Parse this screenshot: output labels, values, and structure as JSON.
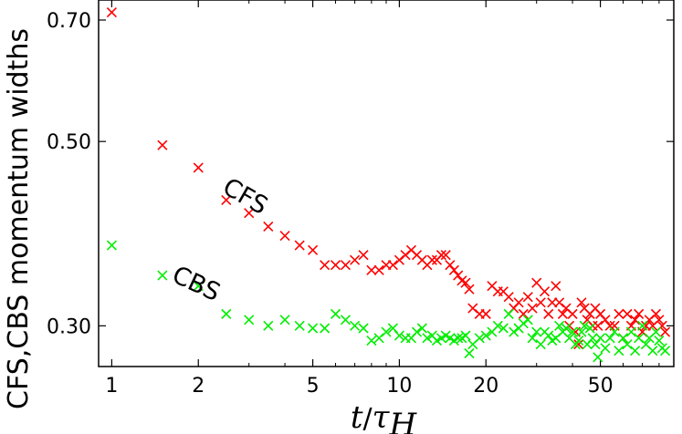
{
  "chart_data": {
    "type": "scatter",
    "title": "",
    "xlabel": "t/τ_H",
    "xlabel_main": "t",
    "xlabel_sep": "/",
    "xlabel_tau": "τ",
    "xlabel_sub": "H",
    "ylabel": "CFS,CBS momentum widths",
    "xscale": "log",
    "yscale": "log",
    "xlim": [
      0.9,
      90
    ],
    "ylim": [
      0.268,
      0.74
    ],
    "xticks": [
      1,
      2,
      5,
      10,
      20,
      50
    ],
    "xtick_labels": [
      "1",
      "2",
      "5",
      "10",
      "20",
      "50"
    ],
    "yticks": [
      0.3,
      0.5,
      0.7
    ],
    "ytick_labels": [
      "0.30",
      "0.50",
      "0.70"
    ],
    "annotations": [
      {
        "text": "CFS",
        "x": 2.4,
        "y": 0.435,
        "rotation": 30
      },
      {
        "text": "CBS",
        "x": 1.6,
        "y": 0.34,
        "rotation": 25
      }
    ],
    "series": [
      {
        "name": "CFS",
        "color": "#ff0000",
        "marker": "x",
        "x": [
          1.0,
          1.5,
          2.0,
          2.5,
          3.0,
          3.5,
          4.0,
          4.5,
          5.0,
          5.5,
          6.0,
          6.5,
          7.0,
          7.5,
          8.0,
          8.5,
          9.0,
          9.5,
          10.0,
          10.5,
          11.0,
          11.5,
          12.0,
          12.5,
          13.0,
          13.5,
          14.0,
          14.5,
          15.0,
          15.5,
          16.0,
          16.5,
          17.0,
          17.5,
          18.0,
          19.0,
          20.0,
          21.0,
          22.0,
          23.0,
          24.0,
          25.0,
          26.0,
          27.0,
          28.0,
          29.0,
          30.0,
          31.0,
          32.0,
          33.0,
          34.0,
          35.0,
          36.0,
          37.0,
          38.0,
          39.0,
          40.0,
          41.0,
          42.0,
          43.0,
          44.0,
          45.0,
          46.0,
          47.0,
          48.0,
          49.0,
          50.0,
          52.0,
          54.0,
          56.0,
          58.0,
          60.0,
          62.0,
          64.0,
          66.0,
          68.0,
          70.0,
          72.0,
          74.0,
          76.0,
          78.0,
          80.0,
          82.0,
          84.0
        ],
        "y": [
          0.715,
          0.495,
          0.465,
          0.425,
          0.41,
          0.395,
          0.385,
          0.375,
          0.37,
          0.355,
          0.355,
          0.355,
          0.36,
          0.365,
          0.35,
          0.35,
          0.355,
          0.355,
          0.36,
          0.365,
          0.37,
          0.365,
          0.36,
          0.355,
          0.36,
          0.36,
          0.365,
          0.365,
          0.355,
          0.35,
          0.345,
          0.34,
          0.338,
          0.332,
          0.315,
          0.31,
          0.31,
          0.335,
          0.33,
          0.33,
          0.325,
          0.315,
          0.32,
          0.31,
          0.325,
          0.315,
          0.338,
          0.32,
          0.33,
          0.31,
          0.32,
          0.335,
          0.32,
          0.31,
          0.315,
          0.3,
          0.31,
          0.295,
          0.285,
          0.32,
          0.315,
          0.305,
          0.31,
          0.3,
          0.315,
          0.3,
          0.31,
          0.305,
          0.3,
          0.3,
          0.31,
          0.29,
          0.31,
          0.3,
          0.305,
          0.31,
          0.295,
          0.3,
          0.305,
          0.3,
          0.31,
          0.305,
          0.3,
          0.295
        ]
      },
      {
        "name": "CBS",
        "color": "#00ee00",
        "marker": "x",
        "x": [
          1.0,
          1.5,
          2.0,
          2.5,
          3.0,
          3.5,
          4.0,
          4.5,
          5.0,
          5.5,
          6.0,
          6.5,
          7.0,
          7.5,
          8.0,
          8.5,
          9.0,
          9.5,
          10.0,
          10.5,
          11.0,
          11.5,
          12.0,
          12.5,
          13.0,
          13.5,
          14.0,
          14.5,
          15.0,
          15.5,
          16.0,
          16.5,
          17.0,
          17.5,
          18.0,
          19.0,
          20.0,
          21.0,
          22.0,
          23.0,
          24.0,
          25.0,
          26.0,
          27.0,
          28.0,
          29.0,
          30.0,
          31.0,
          32.0,
          33.0,
          34.0,
          35.0,
          36.0,
          37.0,
          38.0,
          39.0,
          40.0,
          41.0,
          42.0,
          43.0,
          44.0,
          45.0,
          46.0,
          47.0,
          48.0,
          49.0,
          50.0,
          52.0,
          54.0,
          56.0,
          58.0,
          60.0,
          62.0,
          64.0,
          66.0,
          68.0,
          70.0,
          72.0,
          74.0,
          76.0,
          78.0,
          80.0,
          82.0,
          84.0
        ],
        "y": [
          0.375,
          0.345,
          0.335,
          0.31,
          0.305,
          0.3,
          0.305,
          0.3,
          0.298,
          0.298,
          0.31,
          0.305,
          0.3,
          0.298,
          0.288,
          0.29,
          0.295,
          0.298,
          0.292,
          0.29,
          0.29,
          0.295,
          0.298,
          0.29,
          0.292,
          0.288,
          0.29,
          0.292,
          0.29,
          0.288,
          0.29,
          0.29,
          0.292,
          0.278,
          0.285,
          0.29,
          0.292,
          0.295,
          0.3,
          0.298,
          0.31,
          0.295,
          0.298,
          0.302,
          0.305,
          0.29,
          0.295,
          0.285,
          0.295,
          0.292,
          0.288,
          0.29,
          0.3,
          0.295,
          0.298,
          0.29,
          0.295,
          0.285,
          0.288,
          0.295,
          0.3,
          0.285,
          0.298,
          0.29,
          0.285,
          0.275,
          0.29,
          0.282,
          0.29,
          0.295,
          0.28,
          0.29,
          0.285,
          0.295,
          0.28,
          0.29,
          0.3,
          0.285,
          0.29,
          0.28,
          0.295,
          0.288,
          0.282,
          0.28
        ]
      }
    ]
  }
}
